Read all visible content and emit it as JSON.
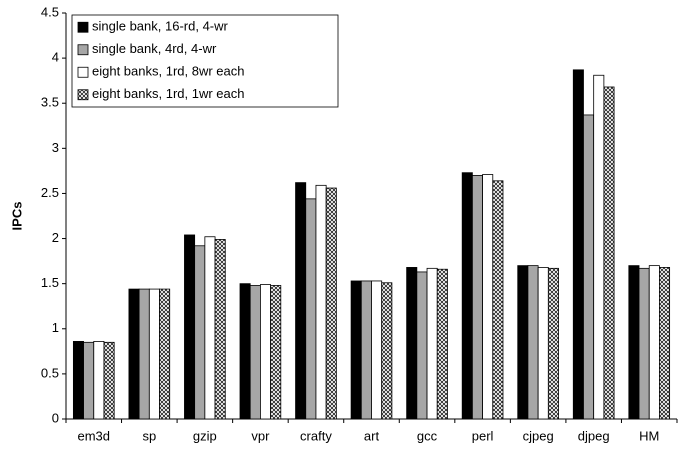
{
  "chart_data": {
    "type": "bar",
    "y_label": "IPCs",
    "categories": [
      "em3d",
      "sp",
      "gzip",
      "vpr",
      "crafty",
      "art",
      "gcc",
      "perl",
      "cjpeg",
      "djpeg",
      "HM"
    ],
    "series": [
      {
        "name": "single bank, 16-rd, 4-wr",
        "color": "#000000",
        "values": [
          0.86,
          1.44,
          2.04,
          1.5,
          2.62,
          1.53,
          1.68,
          2.73,
          1.7,
          3.87,
          1.7
        ]
      },
      {
        "name": "single bank, 4rd, 4-wr",
        "color": "#a6a6a6",
        "values": [
          0.85,
          1.44,
          1.92,
          1.48,
          2.44,
          1.53,
          1.63,
          2.7,
          1.7,
          3.37,
          1.67
        ]
      },
      {
        "name": "eight banks, 1rd, 8wr each",
        "color": "#ffffff",
        "values": [
          0.86,
          1.44,
          2.02,
          1.49,
          2.59,
          1.53,
          1.67,
          2.71,
          1.68,
          3.81,
          1.7
        ]
      },
      {
        "name": "eight banks, 1rd, 1wr each",
        "color": "#ffffff",
        "pattern": "crosshatch",
        "values": [
          0.85,
          1.44,
          1.99,
          1.48,
          2.56,
          1.51,
          1.66,
          2.64,
          1.67,
          3.68,
          1.68
        ]
      }
    ],
    "ylim": [
      0,
      4.5
    ],
    "yticks": [
      0,
      0.5,
      1,
      1.5,
      2,
      2.5,
      3,
      3.5,
      4,
      4.5
    ],
    "grid": false,
    "legend": "top-left"
  }
}
